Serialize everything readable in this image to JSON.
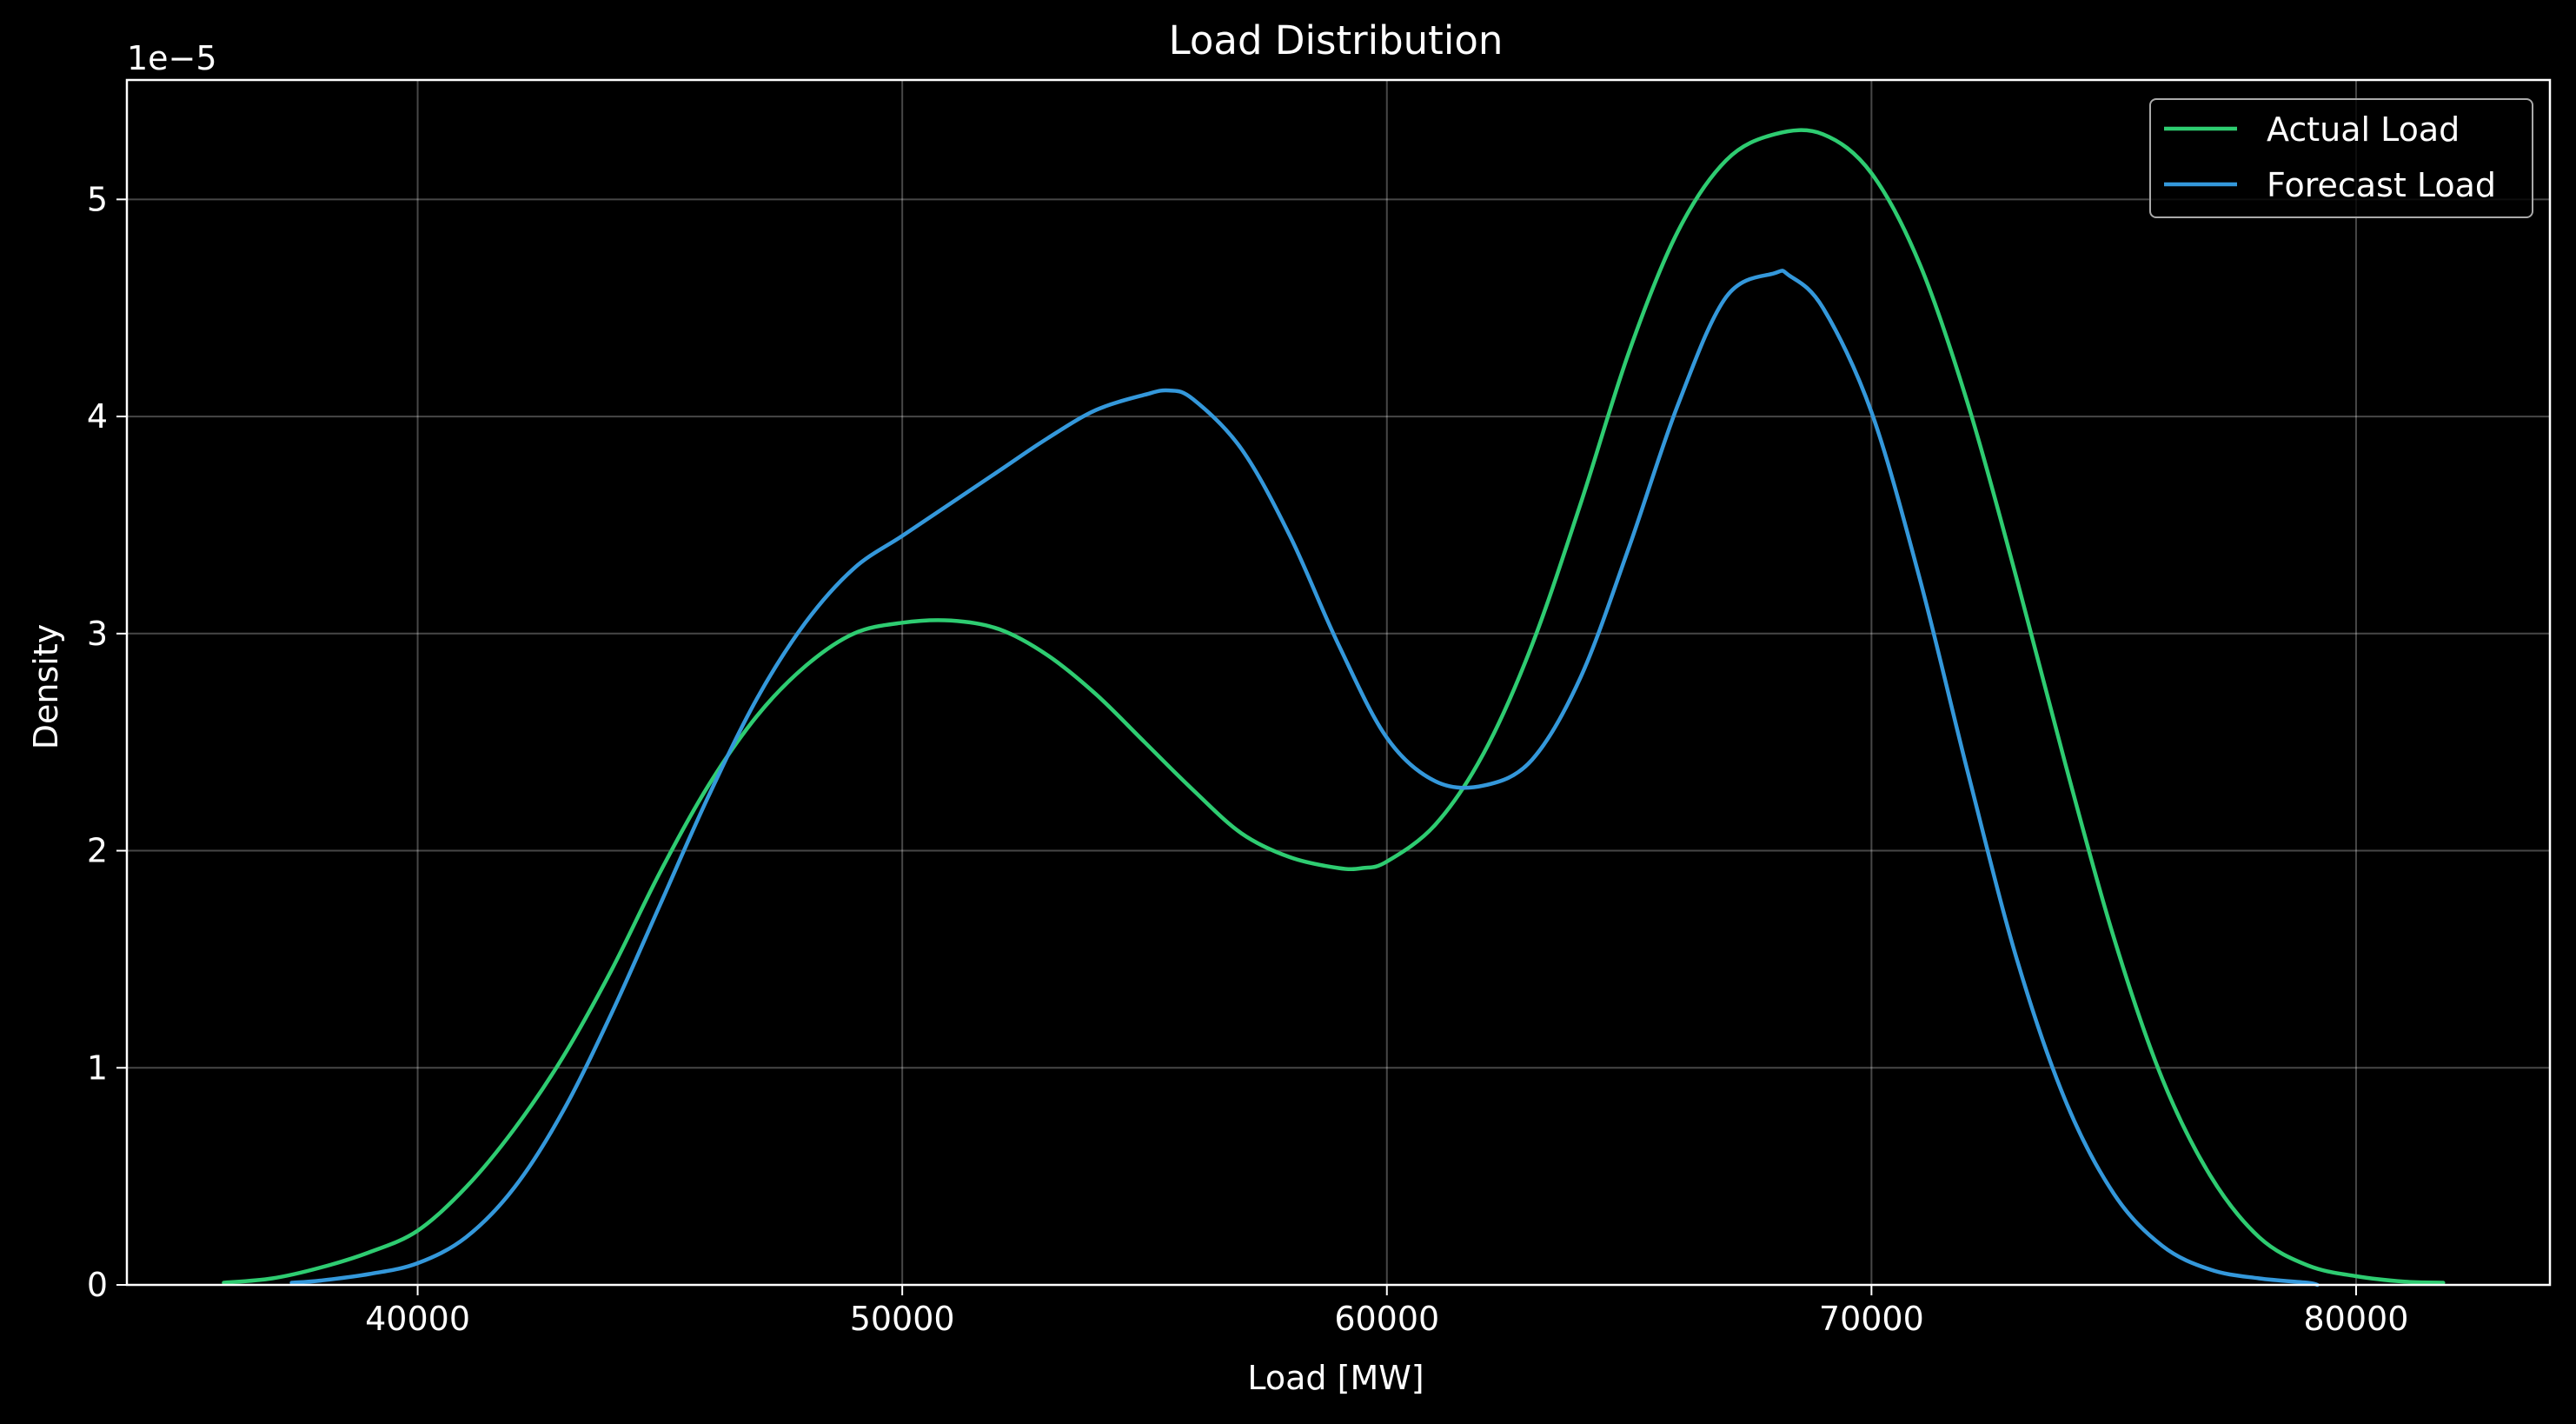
{
  "chart_data": {
    "type": "line",
    "title": "Load Distribution",
    "xlabel": "Load [MW]",
    "ylabel": "Density",
    "y_offset_label": "1e−5",
    "y_scale": 1e-05,
    "xlim": [
      34000,
      84000
    ],
    "ylim": [
      0,
      5.55
    ],
    "x_ticks": [
      40000,
      50000,
      60000,
      70000,
      80000
    ],
    "y_ticks": [
      0,
      1,
      2,
      3,
      4,
      5
    ],
    "grid": true,
    "legend_position": "top-right",
    "background": "#000000",
    "series": [
      {
        "name": "Actual Load",
        "color": "#2ecc71",
        "x": [
          36000,
          37000,
          38000,
          39000,
          40000,
          41000,
          42000,
          43000,
          44000,
          45000,
          46000,
          47000,
          48000,
          49000,
          50000,
          51000,
          52000,
          53000,
          54000,
          55000,
          56000,
          57000,
          58000,
          59000,
          59500,
          60000,
          61000,
          62000,
          63000,
          64000,
          65000,
          66000,
          67000,
          68000,
          69000,
          70000,
          71000,
          72000,
          73000,
          74000,
          75000,
          76000,
          77000,
          78000,
          79000,
          80000,
          81000,
          81800
        ],
        "y": [
          0.01,
          0.03,
          0.08,
          0.15,
          0.25,
          0.45,
          0.72,
          1.05,
          1.45,
          1.9,
          2.3,
          2.62,
          2.85,
          3.0,
          3.05,
          3.06,
          3.02,
          2.9,
          2.72,
          2.5,
          2.28,
          2.08,
          1.97,
          1.92,
          1.92,
          1.95,
          2.12,
          2.45,
          2.95,
          3.6,
          4.3,
          4.85,
          5.18,
          5.3,
          5.3,
          5.12,
          4.7,
          4.05,
          3.25,
          2.4,
          1.6,
          0.95,
          0.5,
          0.22,
          0.09,
          0.04,
          0.015,
          0.01
        ]
      },
      {
        "name": "Forecast Load",
        "color": "#3498db",
        "x": [
          37400,
          38000,
          39000,
          40000,
          41000,
          42000,
          43000,
          44000,
          45000,
          46000,
          47000,
          48000,
          49000,
          50000,
          51000,
          52000,
          53000,
          54000,
          55000,
          55500,
          56000,
          57000,
          58000,
          59000,
          60000,
          61000,
          62000,
          63000,
          64000,
          65000,
          66000,
          67000,
          68000,
          68300,
          69000,
          70000,
          71000,
          72000,
          73000,
          74000,
          75000,
          76000,
          77000,
          78000,
          79000,
          79200
        ],
        "y": [
          0.01,
          0.02,
          0.05,
          0.1,
          0.22,
          0.45,
          0.8,
          1.25,
          1.75,
          2.25,
          2.7,
          3.05,
          3.3,
          3.45,
          3.6,
          3.75,
          3.9,
          4.03,
          4.1,
          4.12,
          4.08,
          3.85,
          3.45,
          2.95,
          2.52,
          2.32,
          2.3,
          2.42,
          2.8,
          3.4,
          4.05,
          4.55,
          4.66,
          4.65,
          4.5,
          4.02,
          3.25,
          2.35,
          1.5,
          0.85,
          0.42,
          0.18,
          0.07,
          0.03,
          0.01,
          0.0
        ]
      }
    ]
  }
}
